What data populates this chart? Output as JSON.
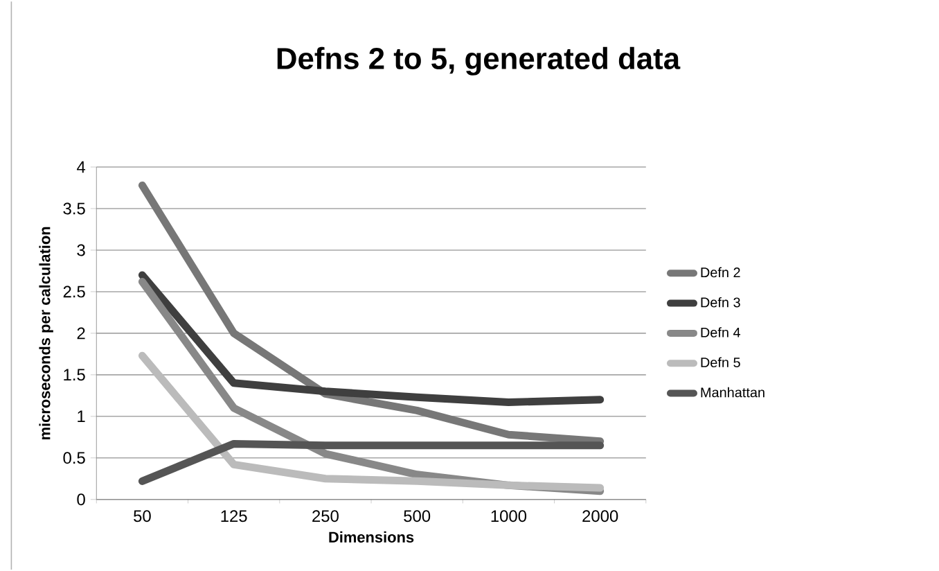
{
  "chart_data": {
    "type": "line",
    "title": "Defns 2 to 5, generated data",
    "xlabel": "Dimensions",
    "ylabel": "microseconds per calculation",
    "categories": [
      "50",
      "125",
      "250",
      "500",
      "1000",
      "2000"
    ],
    "series": [
      {
        "name": "Defn 2",
        "color": "#777777",
        "values": [
          3.78,
          2.0,
          1.27,
          1.07,
          0.78,
          0.7
        ]
      },
      {
        "name": "Defn 3",
        "color": "#3f3f3f",
        "values": [
          2.7,
          1.4,
          1.3,
          1.23,
          1.17,
          1.2
        ]
      },
      {
        "name": "Defn 4",
        "color": "#888888",
        "values": [
          2.62,
          1.1,
          0.55,
          0.3,
          0.17,
          0.1
        ]
      },
      {
        "name": "Defn 5",
        "color": "#bbbbbb",
        "values": [
          1.73,
          0.42,
          0.25,
          0.22,
          0.17,
          0.14
        ]
      },
      {
        "name": "Manhattan",
        "color": "#555555",
        "values": [
          0.22,
          0.67,
          0.65,
          0.65,
          0.65,
          0.65
        ]
      }
    ],
    "ylim": [
      0,
      4
    ],
    "yticks": [
      0,
      0.5,
      1,
      1.5,
      2,
      2.5,
      3,
      3.5,
      4
    ],
    "grid": "y",
    "legend": "right",
    "marker": "none",
    "line_style": "solid"
  }
}
